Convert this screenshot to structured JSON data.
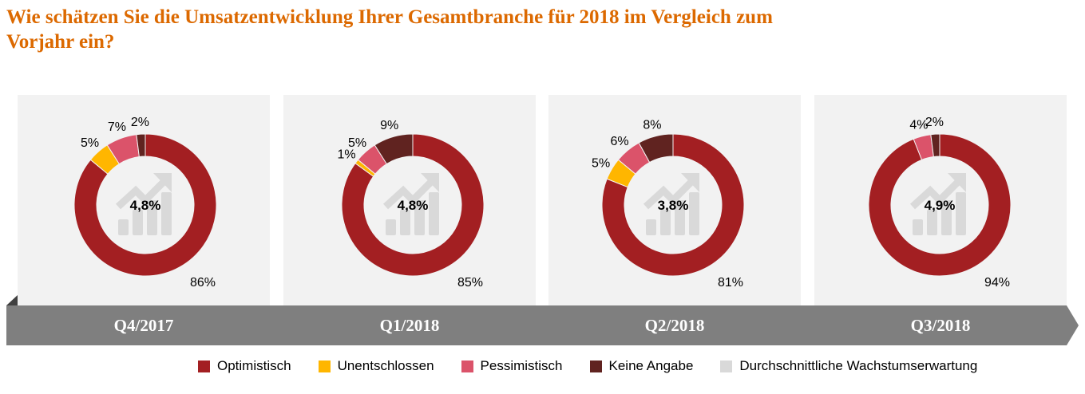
{
  "title": "Wie schätzen Sie die Umsatzentwicklung Ihrer Gesamtbranche für 2018 im Vergleich zum Vorjahr ein?",
  "chart_data": {
    "type": "donut",
    "categories": [
      "Optimistisch",
      "Unentschlossen",
      "Pessimistisch",
      "Keine Angabe"
    ],
    "colors": [
      "#a31f22",
      "#ffb600",
      "#db536a",
      "#602320"
    ],
    "center_icon": "growth-chart-icon",
    "center_icon_color": "#d9d9d9",
    "center_legend_label": "Durchschnittliche Wachstumserwartung",
    "center_legend_color": "#d9d9d9",
    "charts": [
      {
        "period": "Q4/2017",
        "values": [
          86,
          5,
          7,
          2
        ],
        "labels": [
          "86%",
          "5%",
          "7%",
          "2%"
        ],
        "center": "4,8%"
      },
      {
        "period": "Q1/2018",
        "values": [
          85,
          1,
          5,
          9
        ],
        "labels": [
          "85%",
          "1%",
          "5%",
          "9%"
        ],
        "center": "4,8%"
      },
      {
        "period": "Q2/2018",
        "values": [
          81,
          5,
          6,
          8
        ],
        "labels": [
          "81%",
          "5%",
          "6%",
          "8%"
        ],
        "center": "3,8%"
      },
      {
        "period": "Q3/2018",
        "values": [
          94,
          0,
          4,
          2
        ],
        "labels": [
          "94%",
          "",
          "4%",
          "2%"
        ],
        "center": "4,9%"
      }
    ]
  },
  "legend": [
    {
      "label": "Optimistisch",
      "color": "#a31f22"
    },
    {
      "label": "Unentschlossen",
      "color": "#ffb600"
    },
    {
      "label": "Pessimistisch",
      "color": "#db536a"
    },
    {
      "label": "Keine Angabe",
      "color": "#602320"
    },
    {
      "label": "Durchschnittliche Wachstumserwartung",
      "color": "#d9d9d9"
    }
  ]
}
